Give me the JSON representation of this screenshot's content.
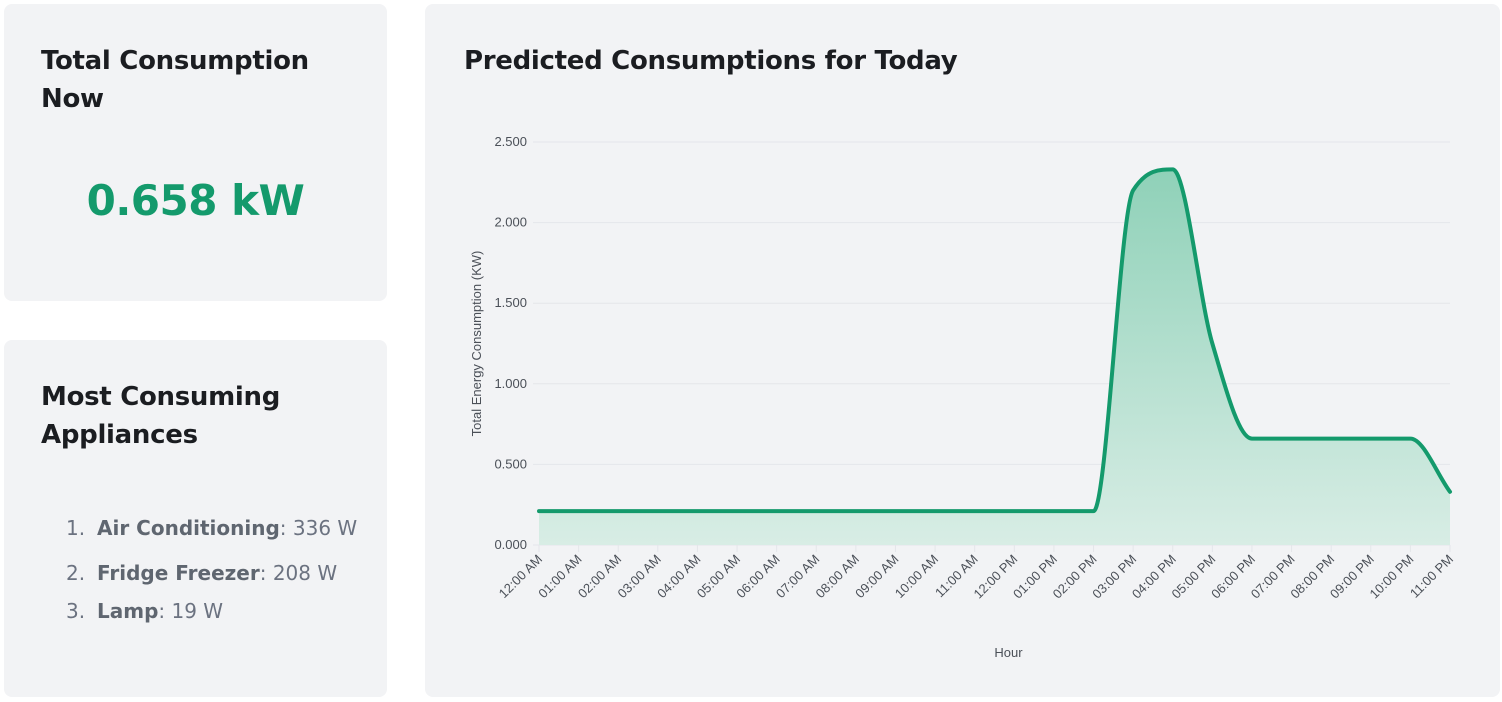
{
  "total_card": {
    "title": "Total Consumption Now",
    "value": "0.658 kW"
  },
  "appliances_card": {
    "title": "Most Consuming Appliances",
    "items": [
      {
        "rank": "1.",
        "name": "Air Conditioning",
        "value": ": 336 W"
      },
      {
        "rank": "2.",
        "name": "Fridge Freezer",
        "value": ": 208 W"
      },
      {
        "rank": "3.",
        "name": "Lamp",
        "value": ": 19 W"
      }
    ]
  },
  "chart_card": {
    "title": "Predicted Consumptions for Today"
  },
  "colors": {
    "accent": "#149a6c",
    "area_fill_top": "#8fd1b8",
    "area_fill_bottom": "#d8ede5",
    "card_bg": "#f2f3f5",
    "grid": "#e4e6ea"
  },
  "chart_data": {
    "type": "area",
    "xlabel": "Hour",
    "ylabel": "Total Energy Consumption (KW)",
    "ylim": [
      0,
      2.5
    ],
    "yticks": [
      "0.000",
      "0.500",
      "1.000",
      "1.500",
      "2.000",
      "2.500"
    ],
    "ytick_values": [
      0,
      0.5,
      1.0,
      1.5,
      2.0,
      2.5
    ],
    "categories": [
      "12:00 AM",
      "01:00 AM",
      "02:00 AM",
      "03:00 AM",
      "04:00 AM",
      "05:00 AM",
      "06:00 AM",
      "07:00 AM",
      "08:00 AM",
      "09:00 AM",
      "10:00 AM",
      "11:00 AM",
      "12:00 PM",
      "01:00 PM",
      "02:00 PM",
      "03:00 PM",
      "04:00 PM",
      "05:00 PM",
      "06:00 PM",
      "07:00 PM",
      "08:00 PM",
      "09:00 PM",
      "10:00 PM",
      "11:00 PM"
    ],
    "series": [
      {
        "values": [
          0.21,
          0.21,
          0.21,
          0.21,
          0.21,
          0.21,
          0.21,
          0.21,
          0.21,
          0.21,
          0.21,
          0.21,
          0.21,
          0.21,
          0.21,
          2.2,
          2.33,
          1.25,
          0.66,
          0.66,
          0.66,
          0.66,
          0.66,
          0.33
        ]
      }
    ],
    "grid": true,
    "legend": "none"
  }
}
